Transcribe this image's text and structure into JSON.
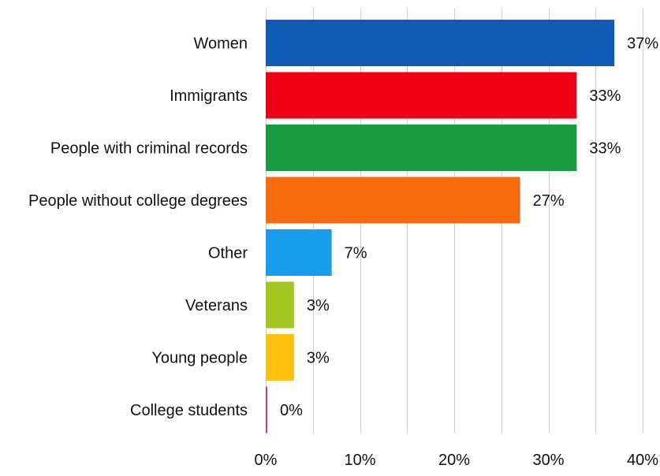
{
  "chart_data": {
    "type": "bar",
    "orientation": "horizontal",
    "title": "",
    "xlabel": "",
    "ylabel": "",
    "xlim": [
      0,
      40
    ],
    "x_ticks": [
      0,
      10,
      20,
      30,
      40
    ],
    "x_tick_labels": [
      "0%",
      "10%",
      "20%",
      "30%",
      "40%"
    ],
    "grid": "vertical",
    "legend": "none",
    "categories": [
      "Women",
      "Immigrants",
      "People with criminal records",
      "People without college degrees",
      "Other",
      "Veterans",
      "Young people",
      "College students"
    ],
    "values": [
      37,
      33,
      33,
      27,
      7,
      3,
      3,
      0
    ],
    "value_labels": [
      "37%",
      "33%",
      "33%",
      "27%",
      "7%",
      "3%",
      "3%",
      "0%"
    ],
    "colors": [
      "#0f5bb5",
      "#ee0017",
      "#1a9a41",
      "#f96b0f",
      "#189ded",
      "#a5c520",
      "#fec10f",
      "#c1379b"
    ]
  }
}
